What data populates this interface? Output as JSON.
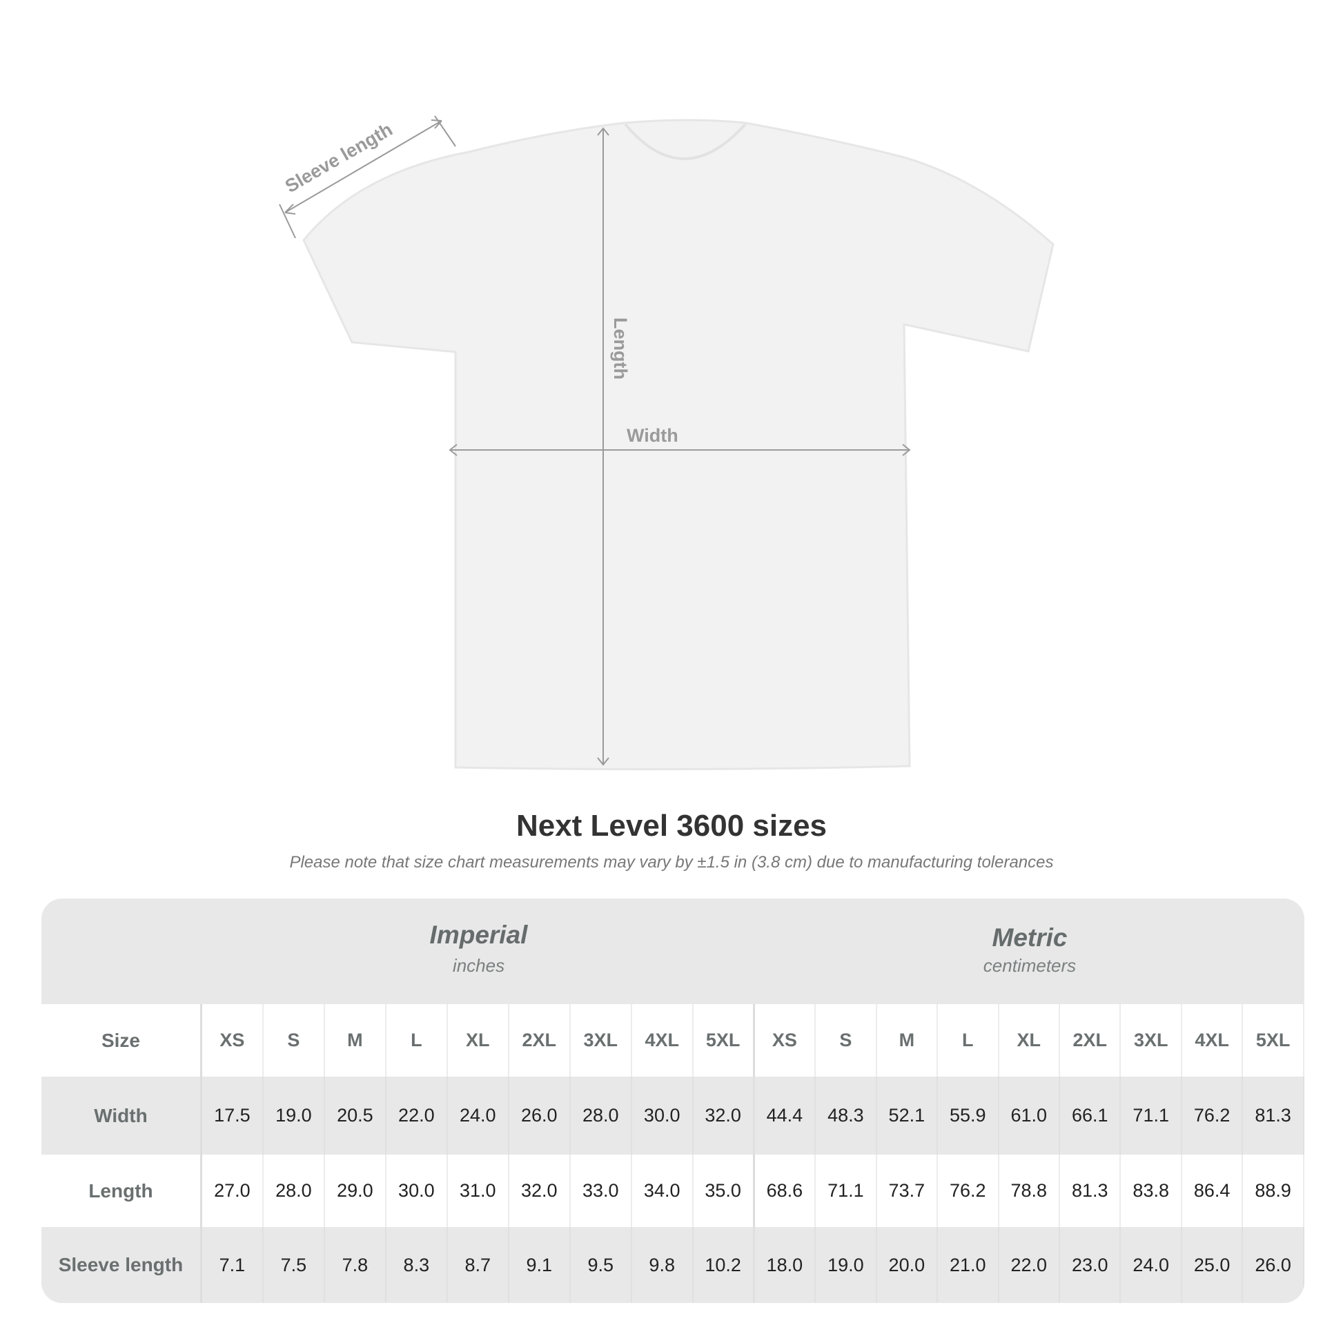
{
  "diagram": {
    "labels": {
      "sleeve": "Sleeve length",
      "length": "Length",
      "width": "Width"
    }
  },
  "title": "Next Level 3600 sizes",
  "subtitle": "Please note that size chart measurements may vary by ±1.5 in (3.8 cm) due to manufacturing tolerances",
  "table": {
    "imperial": {
      "label": "Imperial",
      "unit": "inches"
    },
    "metric": {
      "label": "Metric",
      "unit": "centimeters"
    },
    "size_label": "Size",
    "sizes": [
      "XS",
      "S",
      "M",
      "L",
      "XL",
      "2XL",
      "3XL",
      "4XL",
      "5XL"
    ],
    "rows": [
      {
        "label": "Width",
        "imperial": [
          "17.5",
          "19.0",
          "20.5",
          "22.0",
          "24.0",
          "26.0",
          "28.0",
          "30.0",
          "32.0"
        ],
        "metric": [
          "44.4",
          "48.3",
          "52.1",
          "55.9",
          "61.0",
          "66.1",
          "71.1",
          "76.2",
          "81.3"
        ]
      },
      {
        "label": "Length",
        "imperial": [
          "27.0",
          "28.0",
          "29.0",
          "30.0",
          "31.0",
          "32.0",
          "33.0",
          "34.0",
          "35.0"
        ],
        "metric": [
          "68.6",
          "71.1",
          "73.7",
          "76.2",
          "78.8",
          "81.3",
          "83.8",
          "86.4",
          "88.9"
        ]
      },
      {
        "label": "Sleeve length",
        "imperial": [
          "7.1",
          "7.5",
          "7.8",
          "8.3",
          "8.7",
          "9.1",
          "9.5",
          "9.8",
          "10.2"
        ],
        "metric": [
          "18.0",
          "19.0",
          "20.0",
          "21.0",
          "22.0",
          "23.0",
          "24.0",
          "25.0",
          "26.0"
        ]
      }
    ]
  }
}
